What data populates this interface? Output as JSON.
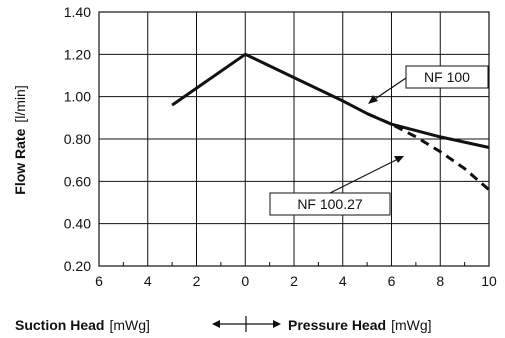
{
  "chart_data": {
    "type": "line",
    "ylabel": {
      "bold": "Flow Rate",
      "unit": "[l/min]"
    },
    "xlabel_left": {
      "bold": "Suction Head",
      "unit": "[mWg]"
    },
    "xlabel_right": {
      "bold": "Pressure Head",
      "unit": "[mWg]"
    },
    "x_tick_labels": [
      "6",
      "4",
      "2",
      "0",
      "2",
      "4",
      "6",
      "8",
      "10"
    ],
    "x_tick_values": [
      -6,
      -4,
      -2,
      0,
      2,
      4,
      6,
      8,
      10
    ],
    "y_tick_labels": [
      "0.20",
      "0.40",
      "0.60",
      "0.80",
      "1.00",
      "1.20",
      "1.40"
    ],
    "y_tick_values": [
      0.2,
      0.4,
      0.6,
      0.8,
      1.0,
      1.2,
      1.4
    ],
    "xlim": [
      -6,
      10
    ],
    "ylim": [
      0.2,
      1.4
    ],
    "grid": true,
    "note": "x-axis: negative values = suction head, positive values = pressure head",
    "series": [
      {
        "name": "NF 100",
        "style": "solid",
        "x": [
          -3,
          0,
          2,
          4,
          5,
          6,
          8,
          10
        ],
        "y": [
          0.96,
          1.2,
          1.09,
          0.98,
          0.92,
          0.87,
          0.81,
          0.76
        ]
      },
      {
        "name": "NF 100.27",
        "style": "dashed",
        "x": [
          5,
          6,
          7,
          8,
          9,
          10
        ],
        "y": [
          0.92,
          0.87,
          0.81,
          0.74,
          0.66,
          0.56
        ]
      }
    ]
  }
}
